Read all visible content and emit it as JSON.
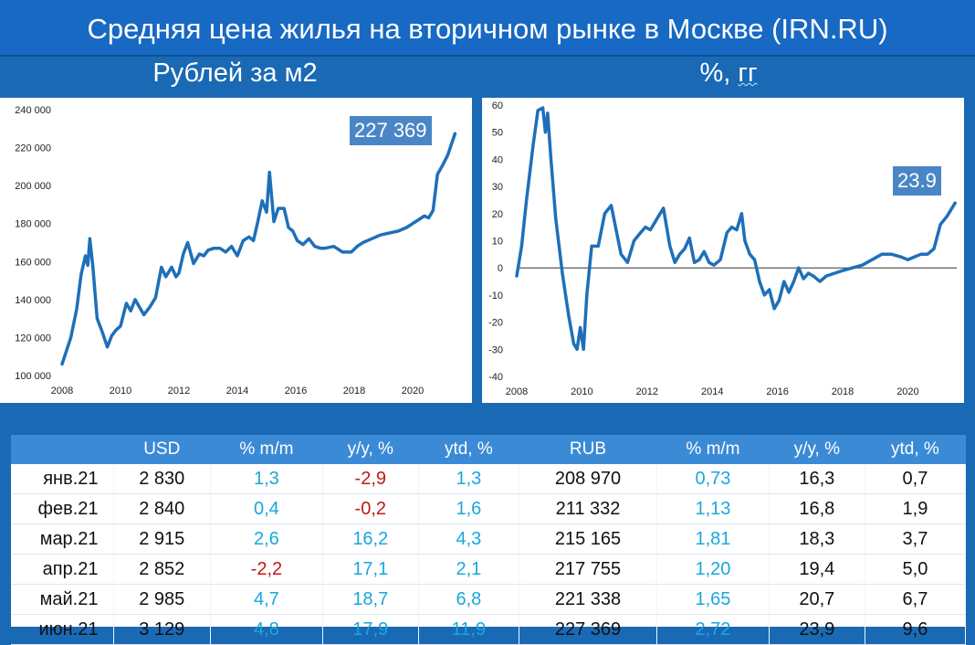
{
  "header": {
    "title": "Средняя цена жилья на вторичном рынке в Москве (IRN.RU)",
    "left_subtitle": "Рублей за м2",
    "right_subtitle_main": "%, ",
    "right_subtitle_unit": "гг"
  },
  "chart_data": [
    {
      "type": "line",
      "title": "",
      "callout": "227 369",
      "color": "#1f6fb8",
      "xlim": [
        2008,
        2021.5
      ],
      "ylim": [
        100000,
        240000
      ],
      "x_ticks": [
        "2008",
        "2010",
        "2012",
        "2014",
        "2016",
        "2018",
        "2020"
      ],
      "y_ticks": [
        "100 000",
        "120 000",
        "140 000",
        "160 000",
        "180 000",
        "200 000",
        "220 000",
        "240 000"
      ],
      "x": [
        2008.0,
        2008.3,
        2008.5,
        2008.65,
        2008.8,
        2008.88,
        2008.95,
        2009.05,
        2009.2,
        2009.35,
        2009.55,
        2009.7,
        2009.85,
        2010.0,
        2010.2,
        2010.35,
        2010.5,
        2010.65,
        2010.8,
        2011.0,
        2011.2,
        2011.4,
        2011.55,
        2011.75,
        2011.9,
        2012.0,
        2012.15,
        2012.3,
        2012.5,
        2012.7,
        2012.85,
        2013.0,
        2013.2,
        2013.4,
        2013.6,
        2013.8,
        2014.0,
        2014.2,
        2014.4,
        2014.55,
        2014.7,
        2014.85,
        2015.0,
        2015.1,
        2015.25,
        2015.4,
        2015.6,
        2015.75,
        2015.9,
        2016.05,
        2016.25,
        2016.45,
        2016.65,
        2016.85,
        2017.0,
        2017.3,
        2017.6,
        2017.9,
        2018.1,
        2018.3,
        2018.6,
        2018.9,
        2019.2,
        2019.5,
        2019.8,
        2020.0,
        2020.2,
        2020.4,
        2020.55,
        2020.7,
        2020.85,
        2021.0,
        2021.2,
        2021.45
      ],
      "values": [
        106000,
        120000,
        135000,
        153000,
        163000,
        158000,
        172000,
        158000,
        130000,
        124000,
        115000,
        121000,
        124000,
        126000,
        138000,
        134000,
        140000,
        136000,
        132000,
        136000,
        141000,
        157000,
        152000,
        157000,
        152000,
        154000,
        164000,
        170000,
        159000,
        164000,
        163000,
        166000,
        167000,
        167000,
        165000,
        168000,
        163000,
        171000,
        173000,
        171000,
        181000,
        192000,
        186000,
        207000,
        181000,
        188000,
        188000,
        178000,
        176000,
        171000,
        169000,
        172000,
        168000,
        167000,
        167000,
        168000,
        165000,
        165000,
        168000,
        170000,
        172000,
        174000,
        175000,
        176000,
        178000,
        180000,
        182000,
        184000,
        183000,
        187000,
        206000,
        210000,
        216000,
        227369
      ]
    },
    {
      "type": "line",
      "title": "",
      "callout": "23.9",
      "color": "#1f6fb8",
      "xlim": [
        2008,
        2021.5
      ],
      "ylim": [
        -40,
        60
      ],
      "x_ticks": [
        "2008",
        "2010",
        "2012",
        "2014",
        "2016",
        "2018",
        "2020"
      ],
      "y_ticks": [
        "-40",
        "-30",
        "-20",
        "-10",
        "0",
        "10",
        "20",
        "30",
        "40",
        "50",
        "60"
      ],
      "x": [
        2008.0,
        2008.15,
        2008.3,
        2008.5,
        2008.65,
        2008.8,
        2008.88,
        2008.95,
        2009.05,
        2009.2,
        2009.4,
        2009.6,
        2009.75,
        2009.85,
        2009.95,
        2010.05,
        2010.15,
        2010.3,
        2010.5,
        2010.7,
        2010.9,
        2011.0,
        2011.2,
        2011.4,
        2011.6,
        2011.8,
        2011.95,
        2012.1,
        2012.3,
        2012.5,
        2012.7,
        2012.85,
        2013.0,
        2013.15,
        2013.3,
        2013.45,
        2013.6,
        2013.75,
        2013.9,
        2014.05,
        2014.25,
        2014.45,
        2014.6,
        2014.75,
        2014.9,
        2015.0,
        2015.15,
        2015.3,
        2015.45,
        2015.6,
        2015.75,
        2015.9,
        2016.05,
        2016.2,
        2016.35,
        2016.5,
        2016.65,
        2016.8,
        2016.95,
        2017.1,
        2017.3,
        2017.5,
        2017.75,
        2018.0,
        2018.3,
        2018.6,
        2018.9,
        2019.2,
        2019.5,
        2019.8,
        2020.0,
        2020.2,
        2020.4,
        2020.6,
        2020.8,
        2021.0,
        2021.2,
        2021.45
      ],
      "values": [
        -3,
        8,
        25,
        45,
        58,
        59,
        50,
        57,
        40,
        18,
        -2,
        -18,
        -28,
        -30,
        -22,
        -30,
        -10,
        8,
        8,
        20,
        23,
        17,
        5,
        2,
        10,
        13,
        15,
        14,
        18,
        22,
        8,
        2,
        5,
        7,
        11,
        2,
        3,
        6,
        2,
        1,
        3,
        13,
        15,
        14,
        20,
        10,
        5,
        3,
        -5,
        -10,
        -8,
        -15,
        -12,
        -5,
        -9,
        -5,
        0,
        -4,
        -2,
        -3,
        -5,
        -3,
        -2,
        -1,
        0,
        1,
        3,
        5,
        5,
        4,
        3,
        4,
        5,
        5,
        7,
        16,
        19,
        23.9
      ]
    }
  ],
  "table": {
    "headers": [
      "",
      "USD",
      "% m/m",
      "y/y, %",
      "ytd, %",
      "RUB",
      "% m/m",
      "y/y, %",
      "ytd, %"
    ],
    "rows": [
      [
        "янв.21",
        "2 830",
        "1,3",
        "-2,9",
        "1,3",
        "208 970",
        "0,73",
        "16,3",
        "0,7"
      ],
      [
        "фев.21",
        "2 840",
        "0,4",
        "-0,2",
        "1,6",
        "211 332",
        "1,13",
        "16,8",
        "1,9"
      ],
      [
        "мар.21",
        "2 915",
        "2,6",
        "16,2",
        "4,3",
        "215 165",
        "1,81",
        "18,3",
        "3,7"
      ],
      [
        "апр.21",
        "2 852",
        "-2,2",
        "17,1",
        "2,1",
        "217 755",
        "1,20",
        "19,4",
        "5,0"
      ],
      [
        "май.21",
        "2 985",
        "4,7",
        "18,7",
        "6,8",
        "221 338",
        "1,65",
        "20,7",
        "6,7"
      ],
      [
        "июн.21",
        "3 129",
        "4,8",
        "17,9",
        "11,9",
        "227 369",
        "2,72",
        "23,9",
        "9,6"
      ]
    ],
    "colors": {
      "positive": "#1aa7dd",
      "negative": "#c21818",
      "neutral": "#111111"
    }
  }
}
